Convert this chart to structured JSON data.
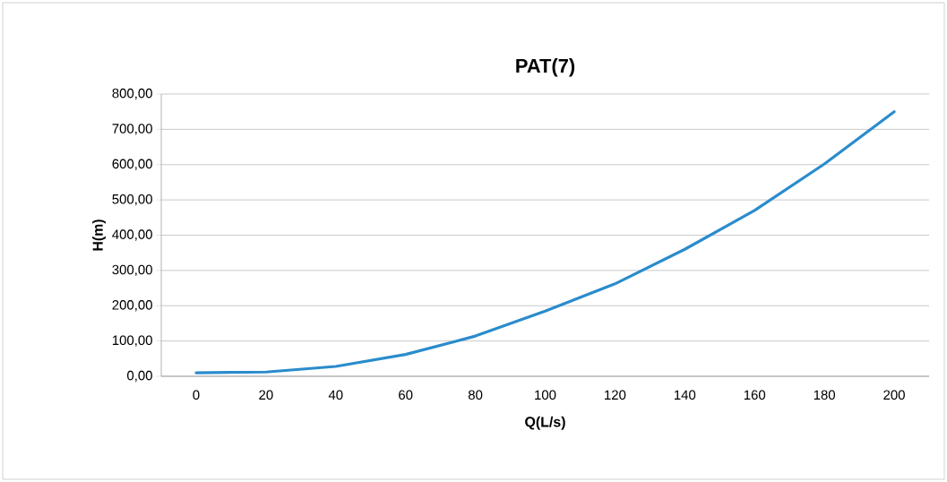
{
  "chart_data": {
    "type": "line",
    "title": "PAT(7)",
    "xlabel": "Q(L/s)",
    "ylabel": "H(m)",
    "categories": [
      "0",
      "20",
      "40",
      "60",
      "80",
      "100",
      "120",
      "140",
      "160",
      "180",
      "200"
    ],
    "series": [
      {
        "color": "#2a8ccc",
        "values": [
          10,
          12,
          28,
          62,
          114,
          185,
          262,
          360,
          470,
          602,
          750
        ]
      }
    ],
    "ylim": [
      0,
      800
    ],
    "yticks": [
      {
        "value": 0,
        "label": "0,00"
      },
      {
        "value": 100,
        "label": "100,00"
      },
      {
        "value": 200,
        "label": "200,00"
      },
      {
        "value": 300,
        "label": "300,00"
      },
      {
        "value": 400,
        "label": "400,00"
      },
      {
        "value": 500,
        "label": "500,00"
      },
      {
        "value": 600,
        "label": "600,00"
      },
      {
        "value": 700,
        "label": "700,00"
      },
      {
        "value": 800,
        "label": "800,00"
      }
    ],
    "grid": "y",
    "marker": "none",
    "line_style": "solid"
  }
}
